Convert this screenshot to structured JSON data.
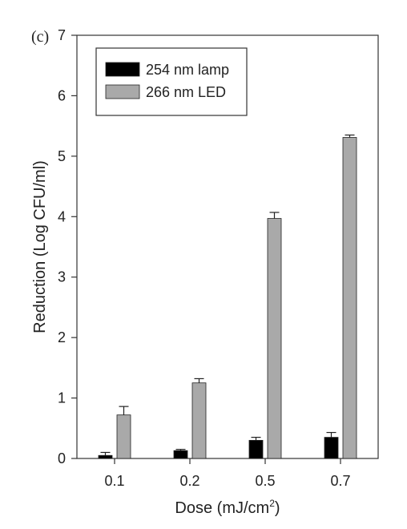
{
  "chart_data": {
    "type": "bar",
    "panel_label": "(c)",
    "xlabel": "Dose (mJ/cm",
    "xlabel_sup": "2",
    "xlabel_close": ")",
    "ylabel": "Reduction (Log CFU/ml)",
    "categories": [
      "0.1",
      "0.2",
      "0.5",
      "0.7"
    ],
    "ylim": [
      0,
      7
    ],
    "yticks": [
      "0",
      "1",
      "2",
      "3",
      "4",
      "5",
      "6",
      "7"
    ],
    "grid": false,
    "legend_position": "top-left",
    "series": [
      {
        "name": "254 nm lamp",
        "values": [
          0.05,
          0.13,
          0.3,
          0.35
        ],
        "errors": [
          0.05,
          0.02,
          0.05,
          0.08
        ],
        "color": "#000000"
      },
      {
        "name": "266 nm LED",
        "values": [
          0.72,
          1.25,
          3.97,
          5.31
        ],
        "errors": [
          0.14,
          0.07,
          0.1,
          0.04
        ],
        "color": "#a9a9a9"
      }
    ]
  }
}
